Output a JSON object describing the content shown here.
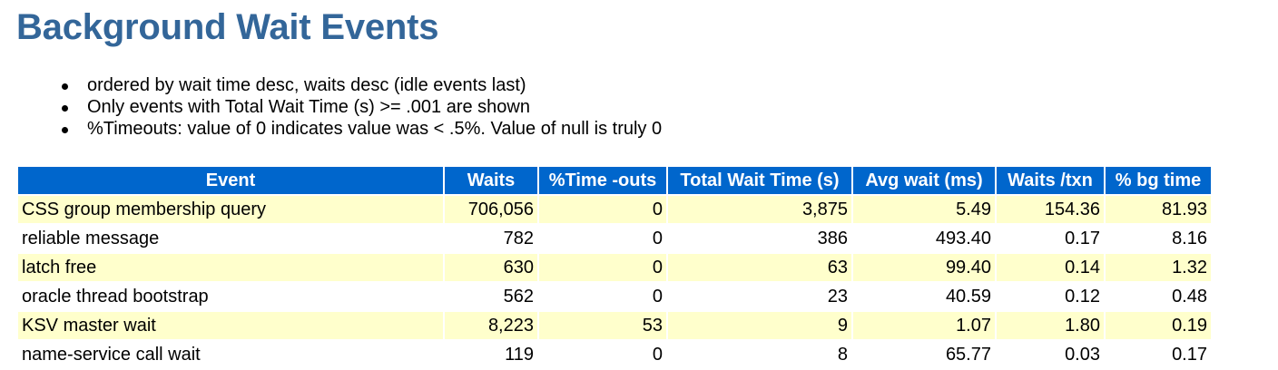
{
  "page": {
    "title": "Background Wait Events"
  },
  "notes": [
    "ordered by wait time desc, waits desc (idle events last)",
    "Only events with Total Wait Time (s) >= .001 are shown",
    "%Timeouts: value of 0 indicates value was < .5%. Value of null is truly 0"
  ],
  "table": {
    "columns": [
      "Event",
      "Waits",
      "%Time -outs",
      "Total Wait Time (s)",
      "Avg wait (ms)",
      "Waits /txn",
      "% bg time"
    ],
    "rows": [
      [
        "CSS group membership query",
        "706,056",
        "0",
        "3,875",
        "5.49",
        "154.36",
        "81.93"
      ],
      [
        "reliable message",
        "782",
        "0",
        "386",
        "493.40",
        "0.17",
        "8.16"
      ],
      [
        "latch free",
        "630",
        "0",
        "63",
        "99.40",
        "0.14",
        "1.32"
      ],
      [
        "oracle thread bootstrap",
        "562",
        "0",
        "23",
        "40.59",
        "0.12",
        "0.48"
      ],
      [
        "KSV master wait",
        "8,223",
        "53",
        "9",
        "1.07",
        "1.80",
        "0.19"
      ],
      [
        "name-service call wait",
        "119",
        "0",
        "8",
        "65.77",
        "0.03",
        "0.17"
      ]
    ]
  },
  "colors": {
    "title": "#336699",
    "header_bg": "#0066cc",
    "header_text": "#ffffff",
    "row_highlight": "#ffffcc"
  }
}
